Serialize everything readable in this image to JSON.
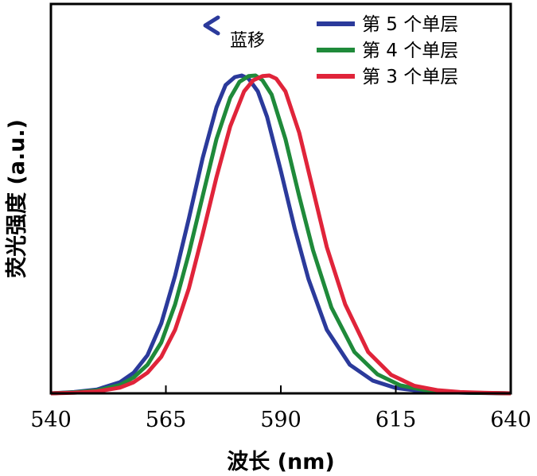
{
  "chart_data": {
    "type": "line",
    "xlabel": "波长 (nm)",
    "ylabel": "荧光强度 (a.u.)",
    "xlim": [
      540,
      640
    ],
    "ylim": [
      0,
      1.0
    ],
    "x_ticks": [
      540,
      565,
      590,
      615,
      640
    ],
    "x_tick_labels": [
      "540",
      "565",
      "590",
      "615",
      "640"
    ],
    "grid": false,
    "legend_position": "top-right",
    "annotation": {
      "text": "蓝移",
      "arrow_direction": "left"
    },
    "series": [
      {
        "name": "第 5 个单层",
        "color": "#2b3a9b",
        "x": [
          540,
          545,
          550,
          555,
          558,
          561,
          564,
          567,
          570,
          573,
          576,
          578,
          580,
          581.5,
          583,
          585,
          587,
          590,
          593,
          596,
          600,
          605,
          610,
          615,
          620,
          625,
          630,
          635,
          640
        ],
        "y": [
          0.0,
          0.004,
          0.012,
          0.035,
          0.065,
          0.12,
          0.22,
          0.37,
          0.55,
          0.74,
          0.9,
          0.97,
          0.995,
          1.0,
          0.99,
          0.95,
          0.87,
          0.7,
          0.52,
          0.36,
          0.2,
          0.09,
          0.04,
          0.017,
          0.008,
          0.004,
          0.002,
          0.001,
          0.0
        ]
      },
      {
        "name": "第 4 个单层",
        "color": "#1f8a3a",
        "x": [
          540,
          545,
          550,
          555,
          558,
          561,
          564,
          567,
          570,
          573,
          576,
          579,
          581,
          583,
          584.5,
          586,
          588,
          591,
          594,
          597,
          601,
          606,
          611,
          616,
          621,
          626,
          631,
          636,
          640
        ],
        "y": [
          0.0,
          0.003,
          0.009,
          0.026,
          0.05,
          0.09,
          0.16,
          0.28,
          0.44,
          0.62,
          0.8,
          0.93,
          0.98,
          0.998,
          1.0,
          0.985,
          0.94,
          0.8,
          0.62,
          0.45,
          0.27,
          0.13,
          0.06,
          0.025,
          0.011,
          0.005,
          0.002,
          0.001,
          0.0
        ]
      },
      {
        "name": "第 3 个单层",
        "color": "#e0243a",
        "x": [
          540,
          545,
          550,
          555,
          558,
          561,
          564,
          567,
          570,
          573,
          576,
          579,
          582,
          584,
          586,
          587.5,
          589,
          591,
          594,
          597,
          600,
          604,
          609,
          614,
          619,
          624,
          629,
          634,
          640
        ],
        "y": [
          0.0,
          0.002,
          0.006,
          0.018,
          0.035,
          0.065,
          0.115,
          0.2,
          0.33,
          0.5,
          0.68,
          0.84,
          0.95,
          0.985,
          0.998,
          1.0,
          0.99,
          0.95,
          0.82,
          0.64,
          0.46,
          0.28,
          0.13,
          0.058,
          0.024,
          0.01,
          0.004,
          0.002,
          0.0
        ]
      }
    ]
  }
}
